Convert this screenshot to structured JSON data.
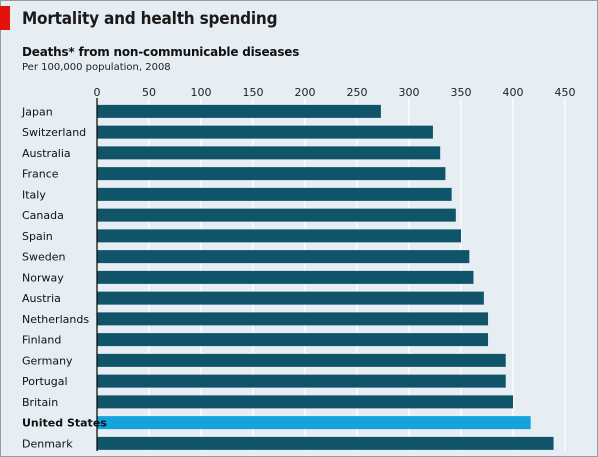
{
  "header": {
    "title": "Mortality and health spending"
  },
  "colors": {
    "accent": "#e3120b",
    "bar": "#0f5468",
    "highlight_bar": "#14a3dd",
    "background": "#e7eef3",
    "grid": "#ffffff"
  },
  "chart_data": {
    "type": "bar",
    "orientation": "horizontal",
    "title": "Deaths* from non-communicable diseases",
    "subtitle": "Per 100,000 population, 2008",
    "xlim": [
      0,
      450
    ],
    "xticks": [
      0,
      50,
      100,
      150,
      200,
      250,
      300,
      350,
      400,
      450
    ],
    "xaxis_position": "top",
    "grid": true,
    "highlight": "United States",
    "categories": [
      "Japan",
      "Switzerland",
      "Australia",
      "France",
      "Italy",
      "Canada",
      "Spain",
      "Sweden",
      "Norway",
      "Austria",
      "Netherlands",
      "Finland",
      "Germany",
      "Portugal",
      "Britain",
      "United States",
      "Denmark"
    ],
    "values": [
      273,
      323,
      330,
      335,
      341,
      345,
      350,
      358,
      362,
      372,
      376,
      376,
      393,
      393,
      400,
      417,
      439
    ]
  }
}
